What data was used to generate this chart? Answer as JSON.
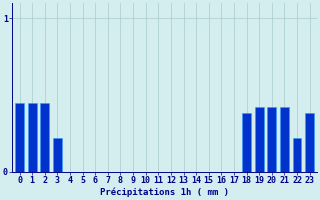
{
  "hours": [
    0,
    1,
    2,
    3,
    4,
    5,
    6,
    7,
    8,
    9,
    10,
    11,
    12,
    13,
    14,
    15,
    16,
    17,
    18,
    19,
    20,
    21,
    22,
    23
  ],
  "values": [
    0.45,
    0.45,
    0.45,
    0.22,
    0,
    0,
    0,
    0,
    0,
    0,
    0,
    0,
    0,
    0,
    0,
    0,
    0,
    0,
    0.38,
    0.42,
    0.42,
    0.42,
    0.22,
    0.38
  ],
  "bar_color": "#0033cc",
  "bar_edge_color": "#3399ff",
  "background_color": "#d4eef0",
  "grid_color": "#aacccc",
  "axis_color": "#000088",
  "text_color": "#000088",
  "xlabel": "Précipitations 1h ( mm )",
  "xlabel_fontsize": 6.5,
  "ylabel_ticks": [
    "0",
    "1"
  ],
  "ytick_values": [
    0,
    1
  ],
  "ylim": [
    0,
    1.1
  ],
  "xlim": [
    -0.6,
    23.6
  ],
  "bar_width": 0.7,
  "tick_fontsize": 6
}
